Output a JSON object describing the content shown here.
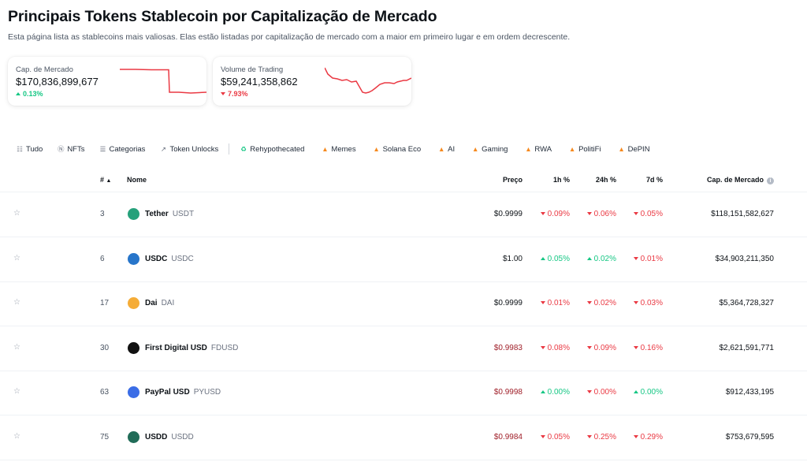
{
  "page": {
    "title": "Principais Tokens Stablecoin por Capitalização de Mercado",
    "subtitle": "Esta página lista as stablecoins mais valiosas. Elas estão listadas por capitalização de mercado com a maior em primeiro lugar e em ordem decrescente."
  },
  "cards": {
    "market_cap": {
      "label": "Cap. de Mercado",
      "value": "$170,836,899,677",
      "change": "0.13%",
      "direction": "up",
      "chart_color": "#ea3943"
    },
    "volume": {
      "label": "Volume de Trading",
      "value": "$59,241,358,862",
      "change": "7.93%",
      "direction": "down",
      "chart_color": "#ea3943"
    }
  },
  "filters": [
    {
      "label": "Tudo",
      "icon": "grid-icon"
    },
    {
      "label": "NFTs",
      "icon": "nft-icon"
    },
    {
      "label": "Categorias",
      "icon": "list-icon"
    },
    {
      "label": "Token Unlocks",
      "icon": "unlock-icon"
    },
    {
      "label": "Rehypothecated",
      "icon": "recycle-icon"
    },
    {
      "label": "Memes",
      "icon": "fire-icon"
    },
    {
      "label": "Solana Eco",
      "icon": "fire-icon"
    },
    {
      "label": "AI",
      "icon": "fire-icon"
    },
    {
      "label": "Gaming",
      "icon": "fire-icon"
    },
    {
      "label": "RWA",
      "icon": "fire-icon"
    },
    {
      "label": "PolitiFi",
      "icon": "fire-icon"
    },
    {
      "label": "DePIN",
      "icon": "fire-icon"
    }
  ],
  "table": {
    "headers": {
      "rank": "#",
      "name": "Nome",
      "price": "Preço",
      "h1": "1h %",
      "h24": "24h %",
      "d7": "7d %",
      "mcap": "Cap. de Mercado"
    },
    "rows": [
      {
        "rank": "3",
        "name": "Tether",
        "symbol": "USDT",
        "price": "$0.9999",
        "price_color": "dark",
        "h1": "0.09%",
        "h1_dir": "down",
        "h24": "0.06%",
        "h24_dir": "down",
        "d7": "0.05%",
        "d7_dir": "down",
        "mcap": "$118,151,582,627",
        "icon_color": "#26a17b"
      },
      {
        "rank": "6",
        "name": "USDC",
        "symbol": "USDC",
        "price": "$1.00",
        "price_color": "dark",
        "h1": "0.05%",
        "h1_dir": "up",
        "h24": "0.02%",
        "h24_dir": "up",
        "d7": "0.01%",
        "d7_dir": "down",
        "mcap": "$34,903,211,350",
        "icon_color": "#2775ca"
      },
      {
        "rank": "17",
        "name": "Dai",
        "symbol": "DAI",
        "price": "$0.9999",
        "price_color": "dark",
        "h1": "0.01%",
        "h1_dir": "down",
        "h24": "0.02%",
        "h24_dir": "down",
        "d7": "0.03%",
        "d7_dir": "down",
        "mcap": "$5,364,728,327",
        "icon_color": "#f5ac37"
      },
      {
        "rank": "30",
        "name": "First Digital USD",
        "symbol": "FDUSD",
        "price": "$0.9983",
        "price_color": "red",
        "h1": "0.08%",
        "h1_dir": "down",
        "h24": "0.09%",
        "h24_dir": "down",
        "d7": "0.16%",
        "d7_dir": "down",
        "mcap": "$2,621,591,771",
        "icon_color": "#111111"
      },
      {
        "rank": "63",
        "name": "PayPal USD",
        "symbol": "PYUSD",
        "price": "$0.9998",
        "price_color": "red",
        "h1": "0.00%",
        "h1_dir": "up",
        "h24": "0.00%",
        "h24_dir": "down",
        "d7": "0.00%",
        "d7_dir": "up",
        "mcap": "$912,433,195",
        "icon_color": "#3b6de6"
      },
      {
        "rank": "75",
        "name": "USDD",
        "symbol": "USDD",
        "price": "$0.9984",
        "price_color": "red",
        "h1": "0.05%",
        "h1_dir": "down",
        "h24": "0.25%",
        "h24_dir": "down",
        "d7": "0.29%",
        "d7_dir": "down",
        "mcap": "$753,679,595",
        "icon_color": "#216c58"
      }
    ]
  }
}
